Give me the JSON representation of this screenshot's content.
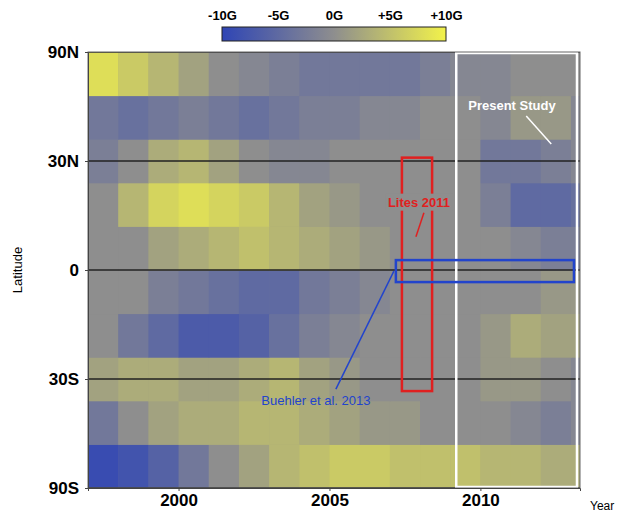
{
  "chart_data": {
    "type": "heatmap",
    "xlabel": "Year",
    "ylabel": "Latitude",
    "xlim": [
      1997,
      2013.3
    ],
    "ylim": [
      -1,
      1
    ],
    "xticks": [
      2000,
      2005,
      2010
    ],
    "yticks": [
      {
        "value": -1,
        "label": "90S"
      },
      {
        "value": -0.5,
        "label": "30S"
      },
      {
        "value": 0,
        "label": "0"
      },
      {
        "value": 0.5,
        "label": "30N"
      },
      {
        "value": 1,
        "label": "90N"
      }
    ],
    "grid": true,
    "x_edges": [
      1997,
      1998,
      1999,
      2000,
      2001,
      2002,
      2003,
      2004,
      2005,
      2006,
      2007,
      2008,
      2009,
      2010,
      2011,
      2012,
      2013,
      2013.3
    ],
    "y_edges": [
      -1,
      -0.8,
      -0.6,
      -0.4,
      -0.2,
      0,
      0.2,
      0.4,
      0.6,
      0.8,
      1
    ],
    "z": [
      [
        -9,
        -8,
        -6,
        -3,
        0,
        2,
        4,
        5,
        6,
        6,
        5,
        5,
        5,
        4,
        4,
        3,
        3
      ],
      [
        -3,
        0,
        2,
        3,
        3,
        4,
        4,
        3,
        2,
        1,
        1,
        0,
        0,
        0,
        -1,
        -2,
        -1
      ],
      [
        2,
        3,
        3,
        2,
        2,
        3,
        4,
        2,
        1,
        0,
        0,
        0,
        0,
        1,
        1,
        0,
        -1
      ],
      [
        0,
        -3,
        -5,
        -7,
        -7,
        -6,
        -4,
        -2,
        -1,
        0,
        0,
        0,
        0,
        1,
        3,
        2,
        2
      ],
      [
        0,
        0,
        -2,
        -3,
        -4,
        -5,
        -5,
        -3,
        -2,
        -1,
        0,
        0,
        0,
        0,
        0,
        1,
        1
      ],
      [
        0,
        0,
        2,
        3,
        4,
        5,
        4,
        3,
        2,
        1,
        0,
        0,
        0,
        0,
        -1,
        -2,
        -2
      ],
      [
        0,
        4,
        7,
        8,
        7,
        6,
        4,
        2,
        1,
        0,
        0,
        0,
        0,
        -2,
        -5,
        -5,
        -4
      ],
      [
        -2,
        0,
        3,
        4,
        2,
        0,
        -1,
        -1,
        0,
        0,
        0,
        0,
        0,
        -3,
        -3,
        -2,
        -1
      ],
      [
        -3,
        -4,
        -3,
        -2,
        -3,
        -4,
        -3,
        -2,
        -2,
        -1,
        -1,
        0,
        0,
        -1,
        1,
        1,
        -1
      ],
      [
        8,
        6,
        4,
        2,
        0,
        -1,
        -2,
        -3,
        -3,
        -3,
        -3,
        -2,
        -1,
        -1,
        0,
        0,
        0
      ]
    ],
    "colorbar": {
      "range": [
        -10,
        10
      ],
      "ticks": [
        {
          "value": -10,
          "label": "-10G"
        },
        {
          "value": -5,
          "label": "-5G"
        },
        {
          "value": 0,
          "label": "0G"
        },
        {
          "value": 5,
          "label": "+5G"
        },
        {
          "value": 10,
          "label": "+10G"
        }
      ]
    },
    "annotations": [
      {
        "text": "Present Study",
        "color": "#ffffff",
        "x0": 2009.2,
        "x1": 2013.2,
        "y0": -1,
        "y1": 1
      },
      {
        "text": "Lites 2011",
        "color": "#e02020",
        "x0": 2007.4,
        "x1": 2008.4,
        "y0": -0.56,
        "y1": 0.52
      },
      {
        "text": "Buehler et al. 2013",
        "color": "#2244cc",
        "x0": 2007.2,
        "x1": 2013.1,
        "y0": -0.06,
        "y1": 0.05
      }
    ]
  }
}
